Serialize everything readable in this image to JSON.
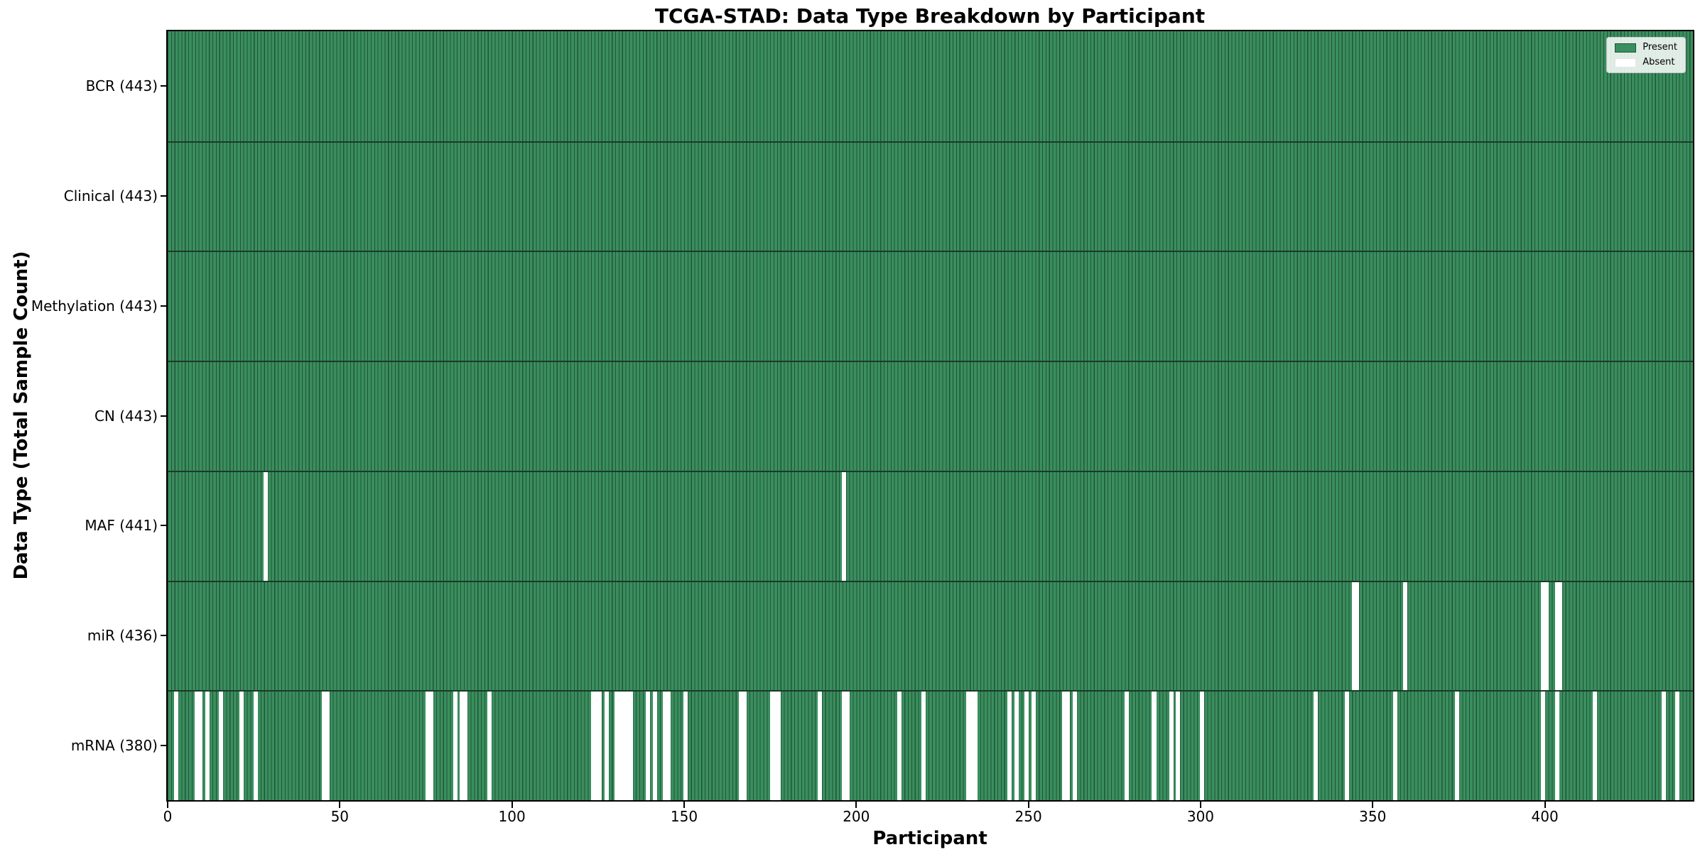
{
  "chart_data": {
    "type": "heatmap",
    "title": "TCGA-STAD: Data Type Breakdown by Participant",
    "xlabel": "Participant",
    "ylabel": "Data Type (Total Sample Count)",
    "n_participants": 443,
    "xlim": [
      0,
      443
    ],
    "x_ticks": [
      0,
      50,
      100,
      150,
      200,
      250,
      300,
      350,
      400
    ],
    "x_tick_labels": [
      "0",
      "50",
      "100",
      "150",
      "200",
      "250",
      "300",
      "350",
      "400"
    ],
    "grid": false,
    "legend_position": "upper right",
    "legend": [
      {
        "label": "Present",
        "color": "#3b8e5f"
      },
      {
        "label": "Absent",
        "color": "#ffffff"
      }
    ],
    "colors": {
      "present_fill": "#3b8e5f",
      "cell_edge": "#1e5636",
      "absent_fill": "#ffffff",
      "row_separator": "#1b3a29",
      "plot_border": "#000000"
    },
    "rows": [
      {
        "label": "BCR (443)",
        "data_type": "BCR",
        "total": 443,
        "absent": []
      },
      {
        "label": "Clinical (443)",
        "data_type": "Clinical",
        "total": 443,
        "absent": []
      },
      {
        "label": "Methylation (443)",
        "data_type": "Methylation",
        "total": 443,
        "absent": []
      },
      {
        "label": "CN (443)",
        "data_type": "CN",
        "total": 443,
        "absent": []
      },
      {
        "label": "MAF (441)",
        "data_type": "MAF",
        "total": 441,
        "absent": [
          28,
          196
        ]
      },
      {
        "label": "miR (436)",
        "data_type": "miR",
        "total": 436,
        "absent": [
          344,
          345,
          359,
          399,
          400,
          403,
          404
        ]
      },
      {
        "label": "mRNA (380)",
        "data_type": "mRNA",
        "total": 380,
        "absent": [
          2,
          8,
          9,
          11,
          15,
          21,
          25,
          45,
          46,
          75,
          76,
          83,
          85,
          86,
          93,
          123,
          124,
          125,
          127,
          130,
          131,
          132,
          133,
          134,
          139,
          141,
          144,
          145,
          150,
          166,
          167,
          175,
          176,
          177,
          189,
          196,
          197,
          212,
          219,
          232,
          233,
          234,
          244,
          246,
          249,
          251,
          260,
          261,
          263,
          278,
          286,
          291,
          293,
          300,
          333,
          342,
          356,
          374,
          399,
          403,
          414,
          434,
          438
        ]
      }
    ]
  }
}
